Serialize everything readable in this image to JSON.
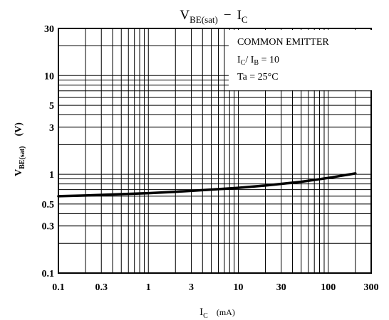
{
  "chart_data": {
    "type": "line",
    "title": {
      "main": "V",
      "sub": "BE(sat)",
      "dash": "−",
      "main2": "I",
      "sub2": "C"
    },
    "xlabel": {
      "main": "I",
      "sub": "C",
      "unit": "(mA)"
    },
    "ylabel": {
      "main": "V",
      "sub": "BE(sat)",
      "unit": "(V)"
    },
    "x_scale": "log",
    "y_scale": "log",
    "xlim": [
      0.1,
      300
    ],
    "ylim": [
      0.1,
      30
    ],
    "x_ticks": [
      "0.1",
      "0.3",
      "1",
      "3",
      "10",
      "30",
      "100",
      "300"
    ],
    "x_tick_values": [
      0.1,
      0.3,
      1,
      3,
      10,
      30,
      100,
      300
    ],
    "y_ticks": [
      "30",
      "10",
      "5",
      "3",
      "1",
      "0.5",
      "0.3",
      "0.1"
    ],
    "y_tick_values": [
      30,
      10,
      5,
      3,
      1,
      0.5,
      0.3,
      0.1
    ],
    "grid": true,
    "annotation": {
      "line1": "COMMON EMITTER",
      "line2_a": "I",
      "line2_a_sub": "C",
      "line2_b": "/ I",
      "line2_b_sub": "B",
      "line2_c": " = 10",
      "line3": "Ta = 25°C"
    },
    "series": [
      {
        "x": [
          0.1,
          0.2,
          0.5,
          1,
          2,
          5,
          10,
          20,
          50,
          100,
          200
        ],
        "y": [
          0.6,
          0.61,
          0.63,
          0.645,
          0.665,
          0.7,
          0.73,
          0.77,
          0.84,
          0.92,
          1.02
        ]
      }
    ]
  }
}
